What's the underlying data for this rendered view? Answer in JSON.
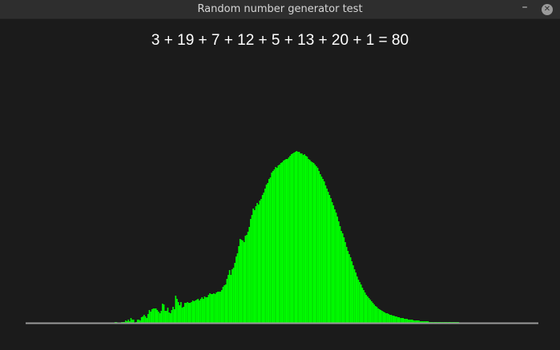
{
  "window": {
    "title": "Random number generator test",
    "minimize_icon": "minimize-icon",
    "close_icon": "close-icon"
  },
  "equation": "3 + 19 + 7 + 12 + 5 + 13 + 20 + 1 = 80",
  "colors": {
    "background": "#1b1b1b",
    "bars": "#00ff00",
    "baseline": "#9a9a9a",
    "title_text": "#d6d6d6",
    "equation_text": "#ffffff"
  },
  "chart_data": {
    "type": "bar",
    "title": "",
    "xlabel": "",
    "ylabel": "",
    "ylim": [
      0,
      322
    ],
    "values": [
      1,
      1,
      0,
      0,
      0,
      1,
      1,
      1,
      3,
      2,
      4,
      2,
      6,
      4,
      4,
      0,
      1,
      4,
      4,
      3,
      7,
      8,
      10,
      8,
      6,
      11,
      16,
      14,
      17,
      18,
      18,
      18,
      16,
      14,
      12,
      15,
      24,
      23,
      15,
      15,
      19,
      13,
      12,
      16,
      20,
      17,
      34,
      30,
      26,
      22,
      26,
      19,
      20,
      25,
      25,
      26,
      25,
      25,
      26,
      28,
      27,
      28,
      29,
      30,
      28,
      30,
      32,
      30,
      33,
      32,
      32,
      35,
      37,
      36,
      36,
      37,
      36,
      38,
      39,
      39,
      39,
      41,
      45,
      47,
      48,
      55,
      60,
      66,
      60,
      67,
      69,
      75,
      83,
      87,
      96,
      105,
      104,
      103,
      101,
      109,
      110,
      114,
      120,
      130,
      135,
      143,
      141,
      146,
      150,
      148,
      153,
      155,
      160,
      163,
      168,
      173,
      175,
      180,
      182,
      188,
      190,
      192,
      195,
      194,
      197,
      198,
      200,
      201,
      203,
      204,
      205,
      205,
      207,
      209,
      211,
      212,
      213,
      214,
      215,
      214,
      214,
      212,
      212,
      210,
      211,
      209,
      208,
      205,
      204,
      202,
      201,
      200,
      198,
      196,
      194,
      190,
      186,
      183,
      180,
      177,
      172,
      168,
      164,
      160,
      156,
      151,
      147,
      142,
      138,
      133,
      127,
      121,
      115,
      112,
      107,
      101,
      95,
      90,
      86,
      82,
      77,
      72,
      67,
      63,
      58,
      54,
      51,
      48,
      44,
      41,
      38,
      35,
      33,
      31,
      29,
      27,
      25,
      23,
      21,
      20,
      18,
      17,
      16,
      15,
      14,
      13,
      12,
      12,
      11,
      10,
      10,
      9,
      9,
      8,
      8,
      7,
      7,
      6,
      6,
      6,
      5,
      5,
      5,
      4,
      4,
      4,
      4,
      3,
      3,
      3,
      3,
      3,
      2,
      2,
      2,
      2,
      2,
      2,
      2,
      1,
      1,
      1,
      1,
      1,
      1,
      1,
      1,
      1,
      1,
      1,
      1,
      1,
      1,
      1,
      1,
      1,
      1,
      1,
      1,
      1,
      1,
      1
    ]
  }
}
